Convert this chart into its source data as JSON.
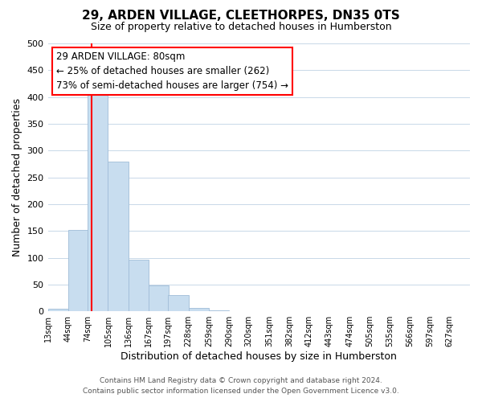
{
  "title1": "29, ARDEN VILLAGE, CLEETHORPES, DN35 0TS",
  "title2": "Size of property relative to detached houses in Humberston",
  "xlabel": "Distribution of detached houses by size in Humberston",
  "ylabel": "Number of detached properties",
  "bar_color": "#c8ddef",
  "bar_edge_color": "#a0bcd8",
  "bin_labels": [
    "13sqm",
    "44sqm",
    "74sqm",
    "105sqm",
    "136sqm",
    "167sqm",
    "197sqm",
    "228sqm",
    "259sqm",
    "290sqm",
    "320sqm",
    "351sqm",
    "382sqm",
    "412sqm",
    "443sqm",
    "474sqm",
    "505sqm",
    "535sqm",
    "566sqm",
    "597sqm",
    "627sqm"
  ],
  "bin_edges": [
    13,
    44,
    74,
    105,
    136,
    167,
    197,
    228,
    259,
    290,
    320,
    351,
    382,
    412,
    443,
    474,
    505,
    535,
    566,
    597,
    627
  ],
  "bar_heights": [
    5,
    152,
    420,
    280,
    96,
    48,
    30,
    7,
    2,
    0,
    0,
    0,
    0,
    0,
    0,
    0,
    0,
    0,
    0,
    0
  ],
  "ylim": [
    0,
    500
  ],
  "yticks": [
    0,
    50,
    100,
    150,
    200,
    250,
    300,
    350,
    400,
    450,
    500
  ],
  "property_line_x": 80,
  "annotation_title": "29 ARDEN VILLAGE: 80sqm",
  "annotation_line1": "← 25% of detached houses are smaller (262)",
  "annotation_line2": "73% of semi-detached houses are larger (754) →",
  "footer1": "Contains HM Land Registry data © Crown copyright and database right 2024.",
  "footer2": "Contains public sector information licensed under the Open Government Licence v3.0.",
  "background_color": "#ffffff",
  "grid_color": "#c8d8e8"
}
